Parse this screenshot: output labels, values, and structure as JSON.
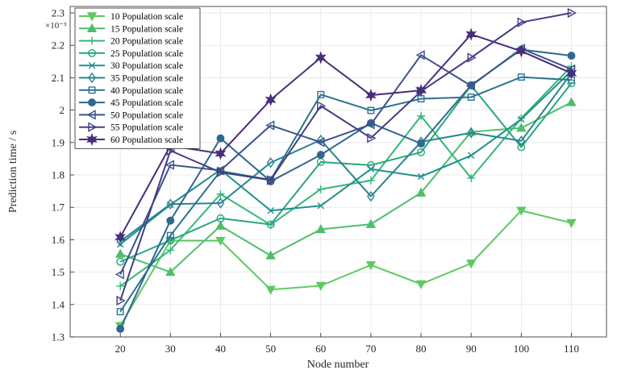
{
  "chart_data": {
    "type": "line",
    "xlabel": "Node number",
    "ylabel": "Prediction time / s",
    "y_exponent_label": "×10⁻³",
    "x": [
      20,
      30,
      40,
      50,
      60,
      70,
      80,
      90,
      100,
      110
    ],
    "x_ticks": [
      "20",
      "30",
      "40",
      "50",
      "60",
      "70",
      "80",
      "90",
      "100",
      "110"
    ],
    "xlim": [
      10,
      117
    ],
    "ylim": [
      1.3,
      2.32
    ],
    "y_ticks": [
      "1.3",
      "1.4",
      "1.5",
      "1.6",
      "1.7",
      "1.8",
      "1.9",
      "2",
      "2.1",
      "2.2",
      "2.3"
    ],
    "grid": true,
    "legend_position": "top-left",
    "series": [
      {
        "name": "10 Population scale",
        "marker": "triangle-down",
        "color": "#5ec962",
        "values": [
          1.334,
          1.597,
          1.597,
          1.446,
          1.458,
          1.522,
          1.463,
          1.527,
          1.69,
          1.652
        ]
      },
      {
        "name": "15 Population scale",
        "marker": "triangle-up",
        "color": "#4fbe6c",
        "values": [
          1.556,
          1.5,
          1.643,
          1.551,
          1.632,
          1.648,
          1.745,
          1.933,
          1.945,
          2.024
        ]
      },
      {
        "name": "20 Population scale",
        "marker": "plus",
        "color": "#35b779",
        "values": [
          1.457,
          1.568,
          1.741,
          1.646,
          1.756,
          1.783,
          1.982,
          1.79,
          1.975,
          2.135
        ]
      },
      {
        "name": "25 Population scale",
        "marker": "circle",
        "color": "#2aa77e",
        "values": [
          1.532,
          1.598,
          1.666,
          1.647,
          1.84,
          1.83,
          1.87,
          2.076,
          1.886,
          2.083
        ]
      },
      {
        "name": "30 Population scale",
        "marker": "x",
        "color": "#21918c",
        "values": [
          1.586,
          1.708,
          1.816,
          1.69,
          1.705,
          1.818,
          1.795,
          1.86,
          1.972,
          2.121
        ]
      },
      {
        "name": "35 Population scale",
        "marker": "diamond",
        "color": "#26858e",
        "values": [
          1.595,
          1.71,
          1.713,
          1.838,
          1.908,
          1.734,
          1.902,
          1.93,
          1.905,
          2.114
        ]
      },
      {
        "name": "40 Population scale",
        "marker": "square",
        "color": "#2c728e",
        "values": [
          1.378,
          1.613,
          1.812,
          1.785,
          2.048,
          1.999,
          2.035,
          2.04,
          2.102,
          2.093
        ]
      },
      {
        "name": "45 Population scale",
        "marker": "circle-filled",
        "color": "#31688e",
        "values": [
          1.325,
          1.659,
          1.913,
          1.78,
          1.862,
          1.96,
          1.897,
          2.077,
          2.187,
          2.168
        ]
      },
      {
        "name": "50 Population scale",
        "marker": "triangle-left",
        "color": "#3b528b",
        "values": [
          1.493,
          1.831,
          1.814,
          1.953,
          1.901,
          1.956,
          2.17,
          2.075,
          2.19,
          2.126
        ]
      },
      {
        "name": "55 Population scale",
        "marker": "triangle-right",
        "color": "#433e85",
        "values": [
          1.412,
          1.875,
          1.808,
          1.784,
          2.013,
          1.914,
          2.058,
          2.162,
          2.271,
          2.3
        ]
      },
      {
        "name": "60 Population scale",
        "marker": "hexagram",
        "color": "#472d7b",
        "values": [
          1.608,
          1.89,
          1.866,
          2.032,
          2.162,
          2.046,
          2.061,
          2.234,
          2.182,
          2.114
        ]
      }
    ]
  }
}
